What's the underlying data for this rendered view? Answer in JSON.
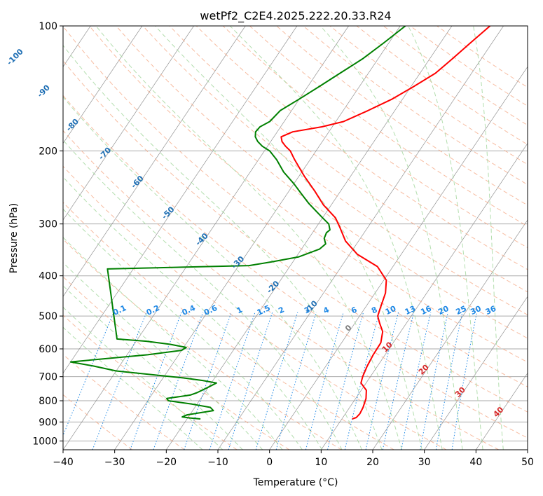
{
  "chart_data": {
    "type": "skew-t",
    "title": "wetPf2_C2E4.2025.222.20.33.R24",
    "xlabel": "Temperature (°C)",
    "ylabel": "Pressure (hPa)",
    "xlim": [
      -40,
      50
    ],
    "ylim": [
      1050,
      100
    ],
    "y_scale": "log",
    "grid": true,
    "x_ticks": [
      -40,
      -30,
      -20,
      -10,
      0,
      10,
      20,
      30,
      40,
      50
    ],
    "x_tick_labels": [
      "−40",
      "−30",
      "−20",
      "−10",
      "0",
      "10",
      "20",
      "30",
      "40",
      "50"
    ],
    "y_ticks": [
      1000,
      900,
      800,
      700,
      600,
      500,
      400,
      300,
      200,
      100
    ],
    "y_tick_labels": [
      "1000",
      "900",
      "800",
      "700",
      "600",
      "500",
      "400",
      "300",
      "200",
      "100"
    ],
    "series": [
      {
        "kind": "temperature",
        "color": "#ff0000",
        "points": [
          [
            12.0,
            885
          ],
          [
            12.6,
            878
          ],
          [
            12.8,
            860
          ],
          [
            12.6,
            830
          ],
          [
            12.0,
            790
          ],
          [
            11.0,
            755
          ],
          [
            9.0,
            725
          ],
          [
            8.5,
            700
          ],
          [
            8.0,
            660
          ],
          [
            7.7,
            620
          ],
          [
            7.6,
            580
          ],
          [
            6.5,
            545
          ],
          [
            4.8,
            520
          ],
          [
            3.5,
            500
          ],
          [
            3.0,
            480
          ],
          [
            2.0,
            440
          ],
          [
            0.5,
            410
          ],
          [
            -3.0,
            380
          ],
          [
            -8.5,
            355
          ],
          [
            -12.5,
            330
          ],
          [
            -15.5,
            305
          ],
          [
            -17.5,
            290
          ],
          [
            -21.5,
            270
          ],
          [
            -25.0,
            250
          ],
          [
            -29.0,
            230
          ],
          [
            -33.0,
            210
          ],
          [
            -35.0,
            200
          ],
          [
            -36.5,
            195
          ],
          [
            -37.8,
            190
          ],
          [
            -38.6,
            185
          ],
          [
            -37.0,
            180
          ],
          [
            -32.0,
            175
          ],
          [
            -28.5,
            170
          ],
          [
            -25.2,
            160
          ],
          [
            -22.0,
            150
          ],
          [
            -19.5,
            140
          ],
          [
            -17.0,
            130
          ],
          [
            -15.6,
            120
          ],
          [
            -14.2,
            110
          ],
          [
            -12.6,
            100
          ]
        ]
      },
      {
        "kind": "dewpoint",
        "color": "#008000",
        "points": [
          [
            -17.4,
            885
          ],
          [
            -19.6,
            880
          ],
          [
            -21.2,
            875
          ],
          [
            -20.5,
            865
          ],
          [
            -16.0,
            845
          ],
          [
            -17.0,
            830
          ],
          [
            -21.0,
            815
          ],
          [
            -26.0,
            800
          ],
          [
            -26.6,
            790
          ],
          [
            -22.5,
            775
          ],
          [
            -21.5,
            765
          ],
          [
            -20.2,
            745
          ],
          [
            -19.0,
            725
          ],
          [
            -22.0,
            715
          ],
          [
            -26.0,
            705
          ],
          [
            -40.0,
            678
          ],
          [
            -45.0,
            660
          ],
          [
            -50.0,
            645
          ],
          [
            -36.0,
            620
          ],
          [
            -30.0,
            605
          ],
          [
            -29.5,
            595
          ],
          [
            -33.0,
            585
          ],
          [
            -38.0,
            575
          ],
          [
            -44.0,
            568
          ],
          [
            -55.0,
            385
          ],
          [
            -28.0,
            378
          ],
          [
            -24.0,
            370
          ],
          [
            -19.5,
            360
          ],
          [
            -16.5,
            345
          ],
          [
            -16.0,
            335
          ],
          [
            -17.0,
            325
          ],
          [
            -17.3,
            315
          ],
          [
            -17.0,
            310
          ],
          [
            -18.0,
            300
          ],
          [
            -20.0,
            290
          ],
          [
            -22.0,
            280
          ],
          [
            -24.5,
            268
          ],
          [
            -27.0,
            255
          ],
          [
            -30.0,
            240
          ],
          [
            -33.5,
            225
          ],
          [
            -36.5,
            210
          ],
          [
            -39.0,
            200
          ],
          [
            -41.0,
            195
          ],
          [
            -42.5,
            190
          ],
          [
            -43.6,
            185
          ],
          [
            -44.2,
            180
          ],
          [
            -44.0,
            175
          ],
          [
            -42.8,
            170
          ],
          [
            -42.2,
            160
          ],
          [
            -40.0,
            150
          ],
          [
            -37.8,
            140
          ],
          [
            -35.5,
            130
          ],
          [
            -33.0,
            120
          ],
          [
            -31.0,
            110
          ],
          [
            -29.0,
            100
          ]
        ]
      }
    ],
    "mixing_ratio_labels": [
      "0.1",
      "0.2",
      "0.4",
      "0.6",
      "1",
      "1.5",
      "2",
      "3",
      "4",
      "6",
      "8",
      "10",
      "13",
      "16",
      "20",
      "25",
      "30",
      "36"
    ],
    "dry_adiabat_labels": [
      "-100",
      "-90",
      "-80",
      "-70",
      "-60",
      "-50",
      "-40",
      "-30",
      "-20",
      "-10"
    ],
    "moist_adiabat_labels": [
      "0",
      "10",
      "20",
      "30",
      "40"
    ]
  },
  "colors": {
    "isotherm": "#808080",
    "isobar": "#aaaaaa",
    "dry_adiabat": "#f4a582",
    "moist_adiabat": "#a6d8a0",
    "mixing_ratio": "#1e88e5",
    "dry_label": "#1f6fb4",
    "moist_label_hot": "#d62728",
    "moist_label_zero": "#808080",
    "temperature": "#ff0000",
    "dewpoint": "#008000",
    "dry_label_series": "#1f77b4"
  }
}
